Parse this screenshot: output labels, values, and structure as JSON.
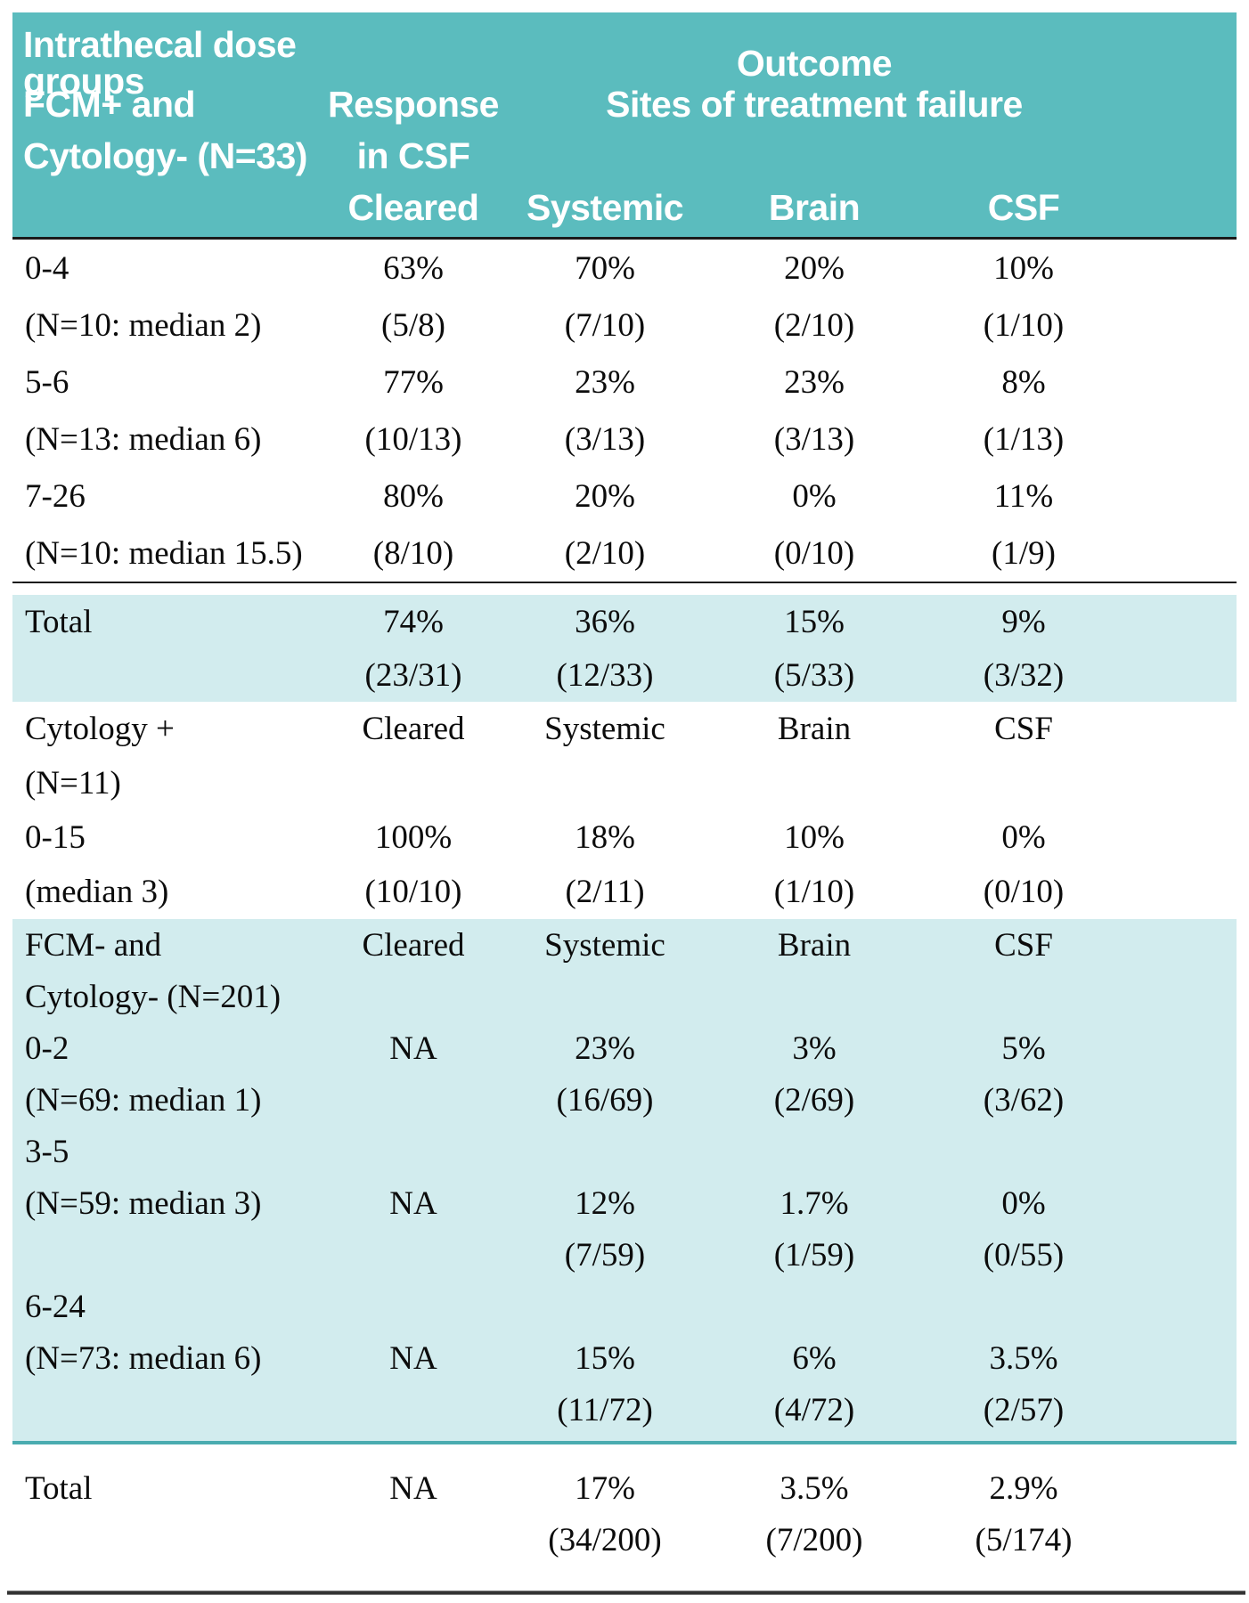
{
  "colors": {
    "header_bg": "#5bbcbe",
    "band_bg": "#d2ecee",
    "divider_dark": "#1b1b1b",
    "divider_teal": "#4aacb0",
    "header_text": "#ffffff",
    "body_text": "#0c0c0c",
    "page_bg": "#ffffff"
  },
  "header": {
    "row1": {
      "left": "Intrathecal dose groups",
      "outcome": "Outcome"
    },
    "row2": {
      "left": "FCM+ and",
      "response": "Response",
      "sites": "Sites of treatment failure"
    },
    "row3": {
      "left": "Cytology- (N=33)",
      "in_csf": "in CSF"
    },
    "row4": {
      "cleared": "Cleared",
      "systemic": "Systemic",
      "brain": "Brain",
      "csf": "CSF"
    }
  },
  "sections": [
    {
      "name": "dose-groups-fcm-pos",
      "style": "plain",
      "rows": [
        [
          "0-4",
          "63%",
          "70%",
          "20%",
          "10%"
        ],
        [
          "(N=10: median 2)",
          "(5/8)",
          "(7/10)",
          "(2/10)",
          "(1/10)"
        ],
        [
          "5-6",
          "77%",
          "23%",
          "23%",
          "8%"
        ],
        [
          "(N=13: median 6)",
          "(10/13)",
          "(3/13)",
          "(3/13)",
          "(1/13)"
        ],
        [
          "7-26",
          "80%",
          "20%",
          "0%",
          "11%"
        ],
        [
          "(N=10: median 15.5)",
          "(8/10)",
          "(2/10)",
          "(0/10)",
          "(1/9)"
        ]
      ]
    },
    {
      "name": "total-fcm-pos",
      "style": "band",
      "rows": [
        [
          "Total",
          "74%",
          "36%",
          "15%",
          "9%"
        ],
        [
          "",
          "(23/31)",
          "(12/33)",
          "(5/33)",
          "(3/32)"
        ]
      ]
    },
    {
      "name": "cytology-pos",
      "style": "plain",
      "rows": [
        [
          "Cytology +",
          "Cleared",
          "Systemic",
          "Brain",
          "CSF"
        ],
        [
          "(N=11)",
          "",
          "",
          "",
          ""
        ],
        [
          "0-15",
          "100%",
          "18%",
          "10%",
          "0%"
        ],
        [
          "(median 3)",
          "(10/10)",
          "(2/11)",
          "(1/10)",
          "(0/10)"
        ]
      ]
    },
    {
      "name": "fcm-neg-cytology-neg",
      "style": "band",
      "rows": [
        [
          "FCM- and",
          "Cleared",
          "Systemic",
          "Brain",
          "CSF"
        ],
        [
          "Cytology- (N=201)",
          "",
          "",
          "",
          ""
        ],
        [
          "0-2",
          "NA",
          "23%",
          "3%",
          "5%"
        ],
        [
          "(N=69: median 1)",
          "",
          "(16/69)",
          "(2/69)",
          "(3/62)"
        ],
        [
          "3-5",
          "",
          "",
          "",
          ""
        ],
        [
          "(N=59: median 3)",
          "NA",
          "12%",
          "1.7%",
          "0%"
        ],
        [
          "",
          "",
          "(7/59)",
          "(1/59)",
          "(0/55)"
        ],
        [
          "6-24",
          "",
          "",
          "",
          ""
        ],
        [
          "(N=73: median 6)",
          "NA",
          "15%",
          "6%",
          "3.5%"
        ],
        [
          "",
          "",
          "(11/72)",
          "(4/72)",
          "(2/57)"
        ]
      ]
    },
    {
      "name": "total-fcm-neg",
      "style": "plain",
      "rows": [
        [
          "Total",
          "NA",
          "17%",
          "3.5%",
          "2.9%"
        ],
        [
          "",
          "",
          "(34/200)",
          "(7/200)",
          "(5/174)"
        ]
      ]
    }
  ]
}
